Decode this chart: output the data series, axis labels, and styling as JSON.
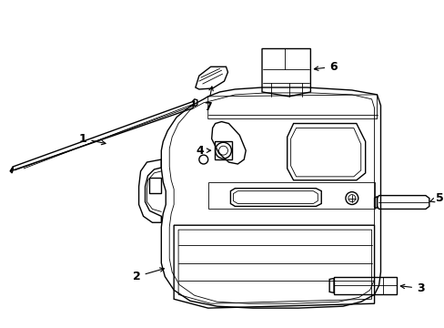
{
  "background_color": "#ffffff",
  "line_color": "#000000",
  "fig_width": 4.89,
  "fig_height": 3.6,
  "dpi": 100,
  "font_size": 9,
  "lw": 1.0,
  "tlw": 0.6
}
